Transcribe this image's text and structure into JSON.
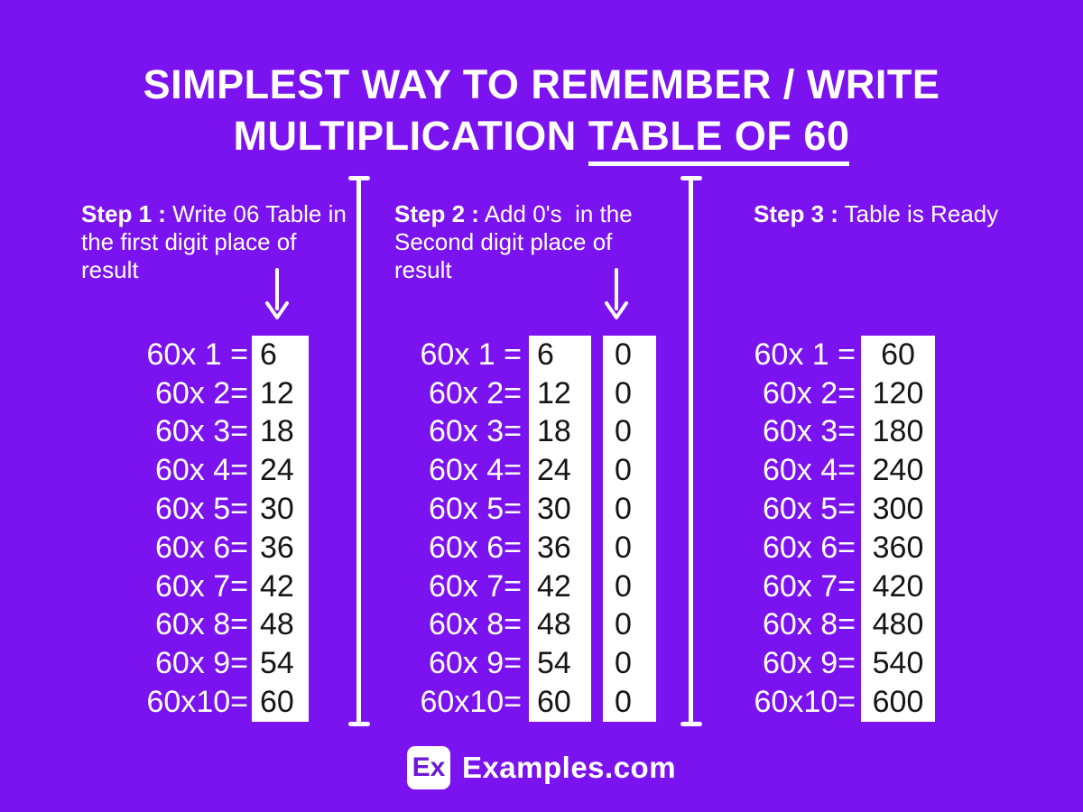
{
  "colors": {
    "background": "#7b12f0",
    "text_light": "#ffffff",
    "number_dark": "#151515",
    "brand_purple": "#6c19d6"
  },
  "title": {
    "line1": "SIMPLEST WAY TO REMEMBER / WRITE",
    "line2_prefix": "MULTIPLICATION ",
    "line2_underlined": "TABLE OF 60"
  },
  "steps": [
    {
      "label_bold": "Step 1 :",
      "label_rest": " Write 06 Table in the first digit place of result"
    },
    {
      "label_bold": "Step 2 :",
      "label_rest": " Add 0's  in the Second digit place of result"
    },
    {
      "label_bold": "Step 3 :",
      "label_rest": " Table is Ready"
    }
  ],
  "table": {
    "labels": [
      "60x 1 =",
      "60x 2=",
      "60x 3=",
      "60x 4=",
      "60x 5=",
      "60x 6=",
      "60x 7=",
      "60x 8=",
      "60x 9=",
      "60x10="
    ],
    "first_digits": [
      "6",
      "12",
      "18",
      "24",
      "30",
      "36",
      "42",
      "48",
      "54",
      "60"
    ],
    "zeros": [
      "0",
      "0",
      "0",
      "0",
      "0",
      "0",
      "0",
      "0",
      "0",
      "0"
    ],
    "products": [
      "60",
      "120",
      "180",
      "240",
      "300",
      "360",
      "420",
      "480",
      "540",
      "600"
    ]
  },
  "footer": {
    "logo_text": "Ex",
    "brand": "Examples.com"
  }
}
